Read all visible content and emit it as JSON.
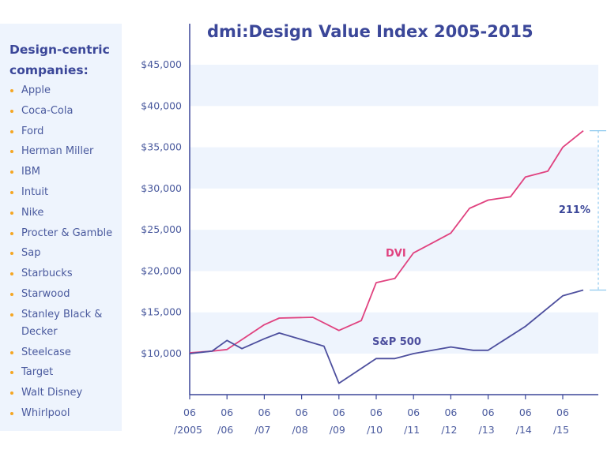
{
  "sidebar": {
    "title": "Design-centric companies:",
    "companies": [
      "Apple",
      "Coca-Cola",
      "Ford",
      "Herman Miller",
      "IBM",
      "Intuit",
      "Nike",
      "Procter & Gamble",
      "Sap",
      "Starbucks",
      "Starwood",
      "Stanley Black & Decker",
      "Steelcase",
      "Target",
      "Walt Disney",
      "Whirlpool"
    ]
  },
  "colors": {
    "dvi": "#e0427f",
    "sp500": "#4d4f9e",
    "band": "#eef4fd",
    "axis": "#3b4799",
    "bracket": "#8ec9ee",
    "bullet": "#f5a623"
  },
  "chart_data": {
    "type": "line",
    "title": "dmi:Design Value Index 2005-2015",
    "xlabel": "",
    "ylabel": "",
    "xlim": [
      2005.0,
      2015.6
    ],
    "ylim": [
      5000,
      47500
    ],
    "y_ticks": [
      10000,
      15000,
      20000,
      25000,
      30000,
      35000,
      40000,
      45000
    ],
    "y_tick_labels": [
      "$10,000",
      "$15,000",
      "$20,000",
      "$25,000",
      "$30,000",
      "$35,000",
      "$40,000",
      "$45,000"
    ],
    "x_ticks": [
      2005,
      2006,
      2007,
      2008,
      2009,
      2010,
      2011,
      2012,
      2013,
      2014,
      2015
    ],
    "x_tick_labels": [
      [
        "06",
        "/2005"
      ],
      [
        "06",
        "/06"
      ],
      [
        "06",
        "/07"
      ],
      [
        "06",
        "/08"
      ],
      [
        "06",
        "/09"
      ],
      [
        "06",
        "/10"
      ],
      [
        "06",
        "/11"
      ],
      [
        "06",
        "/12"
      ],
      [
        "06",
        "/13"
      ],
      [
        "06",
        "/14"
      ],
      [
        "06",
        "/15"
      ]
    ],
    "grid": "alternating horizontal bands",
    "series": [
      {
        "name": "DVI",
        "x": [
          2005.0,
          2005.6,
          2006.0,
          2006.5,
          2007.0,
          2007.4,
          2008.3,
          2009.0,
          2009.6,
          2010.0,
          2010.5,
          2011.0,
          2011.5,
          2012.0,
          2012.5,
          2013.0,
          2013.6,
          2014.0,
          2014.6,
          2015.0,
          2015.55
        ],
        "y": [
          10100,
          10300,
          10500,
          12000,
          13500,
          14300,
          14400,
          12800,
          14000,
          18600,
          19100,
          22200,
          23400,
          24600,
          27600,
          28600,
          29000,
          31400,
          32100,
          35000,
          37000
        ]
      },
      {
        "name": "S&P 500",
        "x": [
          2005.0,
          2005.6,
          2006.0,
          2006.4,
          2007.0,
          2007.4,
          2008.6,
          2009.0,
          2010.0,
          2010.5,
          2011.0,
          2012.0,
          2012.6,
          2013.0,
          2014.0,
          2015.0,
          2015.55
        ],
        "y": [
          10000,
          10300,
          11600,
          10600,
          11800,
          12500,
          10900,
          6400,
          9400,
          9400,
          10000,
          10800,
          10400,
          10400,
          13300,
          17000,
          17700
        ]
      }
    ],
    "annotations": [
      {
        "text": "211%",
        "type": "bracket",
        "from": 37000,
        "to": 17700
      }
    ]
  }
}
